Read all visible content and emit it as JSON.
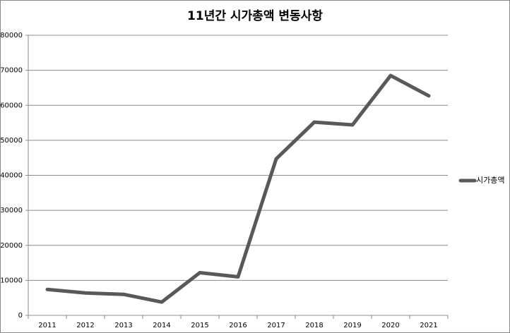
{
  "chart_data": {
    "type": "line",
    "title": "11년간 시가총액 변동사항",
    "categories": [
      "2011",
      "2012",
      "2013",
      "2014",
      "2015",
      "2016",
      "2017",
      "2018",
      "2019",
      "2020",
      "2021"
    ],
    "series": [
      {
        "name": "시가총액",
        "color": "#595959",
        "values": [
          7400,
          6400,
          6000,
          3800,
          12200,
          11000,
          44700,
          55200,
          54400,
          68500,
          62700
        ]
      }
    ],
    "ylim": [
      0,
      80000
    ],
    "yticks": [
      0,
      10000,
      20000,
      30000,
      40000,
      50000,
      60000,
      70000,
      80000
    ],
    "grid": true,
    "legend": "right"
  }
}
